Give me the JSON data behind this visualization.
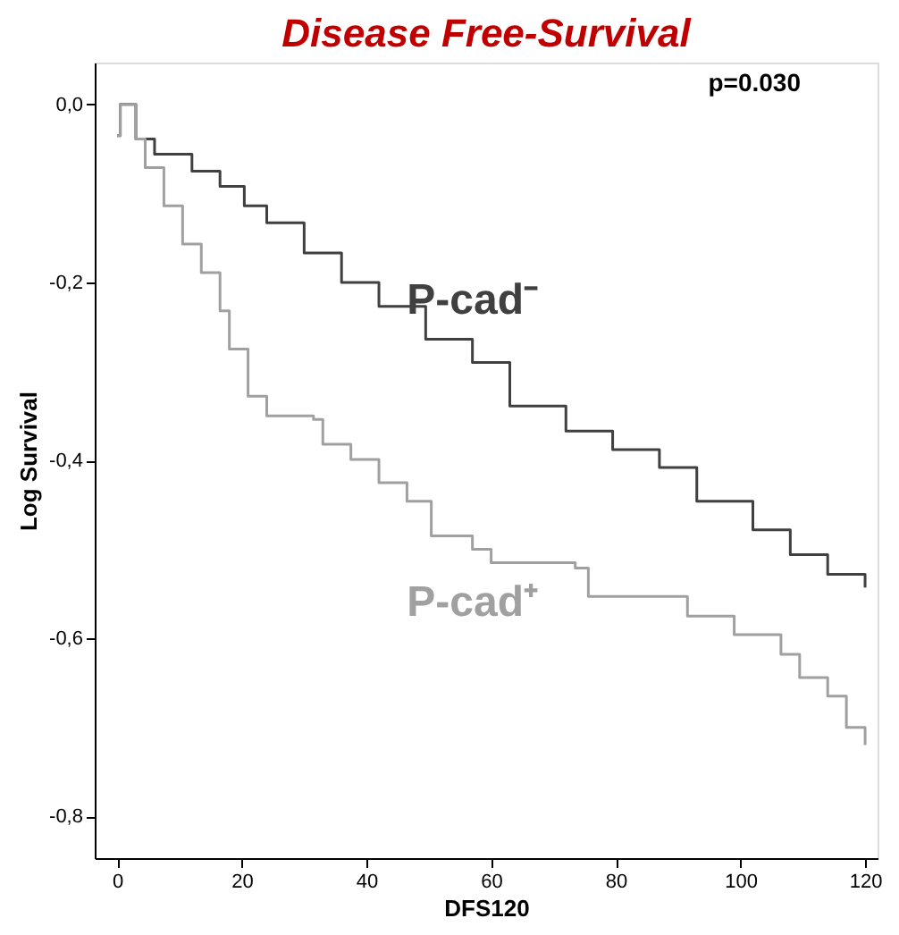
{
  "chart_data": {
    "type": "step",
    "title": "Disease Free-Survival",
    "xlabel": "DFS120",
    "ylabel": "Log Survival",
    "xlim": [
      -3.6,
      122
    ],
    "ylim": [
      -0.847,
      0.047
    ],
    "xticks": [
      0,
      20,
      40,
      60,
      80,
      100,
      120
    ],
    "yticks": [
      {
        "value": 0,
        "label": "0,0"
      },
      {
        "value": -0.2,
        "label": "-0,2"
      },
      {
        "value": -0.4,
        "label": "-0,4"
      },
      {
        "value": -0.6,
        "label": "-0,6"
      },
      {
        "value": -0.8,
        "label": "-0,8"
      }
    ],
    "grid": false,
    "annotations": [
      "p=0.030"
    ],
    "series": [
      {
        "name": "P-cad⁻",
        "color": "#404040",
        "x": [
          0,
          0.5,
          3,
          6,
          12,
          16.5,
          20.4,
          24,
          30,
          36,
          42,
          49.5,
          57,
          63,
          72,
          79.5,
          87,
          93,
          102,
          108,
          114,
          120
        ],
        "values": [
          -0.035,
          0,
          -0.039,
          -0.056,
          -0.075,
          -0.092,
          -0.114,
          -0.133,
          -0.167,
          -0.2,
          -0.227,
          -0.264,
          -0.29,
          -0.339,
          -0.367,
          -0.388,
          -0.408,
          -0.446,
          -0.478,
          -0.506,
          -0.528,
          -0.543
        ]
      },
      {
        "name": "P-cad⁺",
        "color": "#a0a0a0",
        "x": [
          0,
          0.5,
          3,
          4.5,
          7.5,
          10.5,
          13.5,
          16.5,
          18,
          21,
          24,
          31.5,
          33,
          37.5,
          42,
          46.5,
          50.4,
          57,
          60,
          73.5,
          75.6,
          91.5,
          99,
          106.5,
          109.5,
          114,
          117,
          120
        ],
        "values": [
          -0.035,
          0,
          -0.039,
          -0.071,
          -0.114,
          -0.157,
          -0.189,
          -0.232,
          -0.275,
          -0.328,
          -0.35,
          -0.354,
          -0.382,
          -0.399,
          -0.425,
          -0.446,
          -0.485,
          -0.5,
          -0.515,
          -0.521,
          -0.553,
          -0.575,
          -0.596,
          -0.618,
          -0.644,
          -0.665,
          -0.7,
          -0.72
        ]
      }
    ]
  }
}
